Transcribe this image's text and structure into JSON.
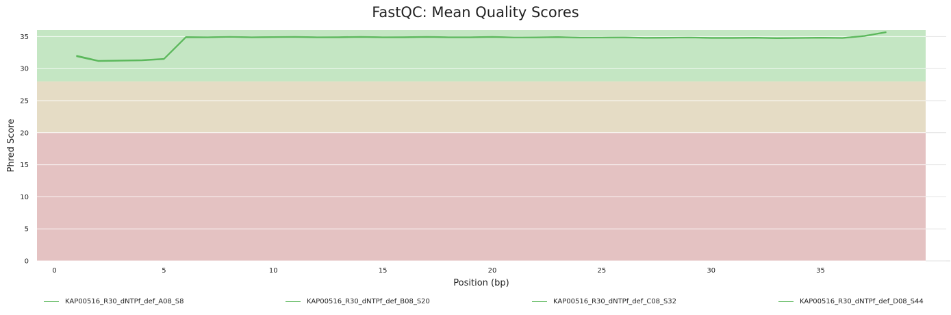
{
  "chart_data": {
    "type": "line",
    "title": "FastQC: Mean Quality Scores",
    "xlabel": "Position (bp)",
    "ylabel": "Phred Score",
    "xlim": [
      -0.8,
      39.8
    ],
    "ylim": [
      0,
      36
    ],
    "x_ticks": [
      0,
      5,
      10,
      15,
      20,
      25,
      30,
      35
    ],
    "y_ticks": [
      0,
      5,
      10,
      15,
      20,
      25,
      30,
      35
    ],
    "grid": true,
    "legend_position": "bottom",
    "bands": [
      {
        "from": 0,
        "to": 20,
        "color": "#e4c2c2"
      },
      {
        "from": 20,
        "to": 28,
        "color": "#e5dcc5"
      },
      {
        "from": 28,
        "to": 36,
        "color": "#c4e6c3"
      }
    ],
    "x": [
      1,
      2,
      3,
      4,
      5,
      6,
      7,
      8,
      9,
      10,
      11,
      12,
      13,
      14,
      15,
      16,
      17,
      18,
      19,
      20,
      21,
      22,
      23,
      24,
      25,
      26,
      27,
      28,
      29,
      30,
      31,
      32,
      33,
      34,
      35,
      36,
      37,
      38
    ],
    "series": [
      {
        "name": "KAP00516_R30_dNTPf_def_A08_S8",
        "color": "#5cb85c",
        "values": [
          32.0,
          31.2,
          31.25,
          31.3,
          31.5,
          34.9,
          34.9,
          34.95,
          34.9,
          34.92,
          34.95,
          34.9,
          34.9,
          34.95,
          34.9,
          34.9,
          34.95,
          34.9,
          34.9,
          34.95,
          34.88,
          34.88,
          34.92,
          34.85,
          34.85,
          34.88,
          34.8,
          34.82,
          34.85,
          34.78,
          34.78,
          34.82,
          34.75,
          34.78,
          34.82,
          34.78,
          35.1,
          35.7
        ]
      },
      {
        "name": "KAP00516_R30_dNTPf_def_B08_S20",
        "color": "#5cb85c",
        "values": [
          31.9,
          31.15,
          31.2,
          31.25,
          31.45,
          34.85,
          34.85,
          34.92,
          34.85,
          34.88,
          34.9,
          34.85,
          34.85,
          34.9,
          34.85,
          34.85,
          34.9,
          34.85,
          34.85,
          34.9,
          34.82,
          34.84,
          34.88,
          34.8,
          34.82,
          34.84,
          34.76,
          34.78,
          34.82,
          34.74,
          34.74,
          34.78,
          34.7,
          34.74,
          34.78,
          34.74,
          35.05,
          35.65
        ]
      },
      {
        "name": "KAP00516_R30_dNTPf_def_C08_S32",
        "color": "#5cb85c",
        "values": [
          32.05,
          31.25,
          31.3,
          31.35,
          31.55,
          34.95,
          34.92,
          34.98,
          34.92,
          34.95,
          34.98,
          34.92,
          34.94,
          34.98,
          34.92,
          34.94,
          34.98,
          34.93,
          34.93,
          34.98,
          34.9,
          34.91,
          34.95,
          34.88,
          34.88,
          34.9,
          34.83,
          34.85,
          34.88,
          34.81,
          34.81,
          34.85,
          34.78,
          34.8,
          34.85,
          34.8,
          35.12,
          35.72
        ]
      },
      {
        "name": "KAP00516_R30_dNTPf_def_D08_S44",
        "color": "#5cb85c",
        "values": [
          31.95,
          31.2,
          31.22,
          31.28,
          31.5,
          34.88,
          34.88,
          34.94,
          34.88,
          34.9,
          34.93,
          34.88,
          34.88,
          34.93,
          34.88,
          34.88,
          34.93,
          34.88,
          34.88,
          34.93,
          34.86,
          34.86,
          34.9,
          34.83,
          34.83,
          34.86,
          34.78,
          34.8,
          34.84,
          34.76,
          34.76,
          34.8,
          34.73,
          34.76,
          34.8,
          34.76,
          35.08,
          35.68
        ]
      }
    ]
  }
}
